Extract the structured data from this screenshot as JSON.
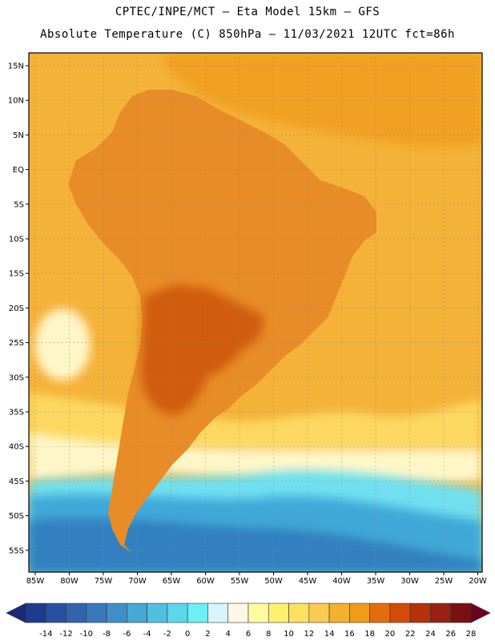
{
  "title_line1": "CPTEC/INPE/MCT –  Eta Model 15km – GFS",
  "title_line2": "Absolute Temperature (C) 850hPa – 11/03/2021 12UTC fct=86h",
  "lat_labels": [
    "15N",
    "10N",
    "5N",
    "EQ",
    "5S",
    "10S",
    "15S",
    "20S",
    "25S",
    "30S",
    "35S",
    "40S",
    "45S",
    "50S",
    "55S"
  ],
  "lon_labels": [
    "85W",
    "80W",
    "75W",
    "70W",
    "65W",
    "60W",
    "55W",
    "50W",
    "45W",
    "40W",
    "35W",
    "30W",
    "25W",
    "20W"
  ],
  "colorbar": {
    "ticks": [
      "-14",
      "-12",
      "-10",
      "-8",
      "-6",
      "-4",
      "-2",
      "0",
      "2",
      "4",
      "6",
      "8",
      "10",
      "12",
      "14",
      "16",
      "18",
      "20",
      "22",
      "24",
      "26",
      "28"
    ],
    "colors": [
      "#1e3c8c",
      "#28509e",
      "#3264ac",
      "#3a78bc",
      "#4090c8",
      "#46a8d4",
      "#50c0e0",
      "#5ad8ea",
      "#6cf0f4",
      "#d8f4fc",
      "#fff8e6",
      "#fffca0",
      "#fff070",
      "#fce060",
      "#f8cc50",
      "#f4b030",
      "#f09c18",
      "#e46c0c",
      "#d44a08",
      "#b83008",
      "#982010",
      "#7c1010"
    ],
    "low_color": "#1a2a78",
    "high_color": "#6c0020"
  },
  "colors": {
    "ocean_tropical": "#f4b238",
    "ocean_warm": "#f0a020",
    "land": "#e88c28",
    "hot_core": "#d05c10",
    "cool_band": "#fcd860",
    "pale": "#fff6c8",
    "cold1": "#70e0f0",
    "cold2": "#40a8d8",
    "cold3": "#3080c0"
  }
}
